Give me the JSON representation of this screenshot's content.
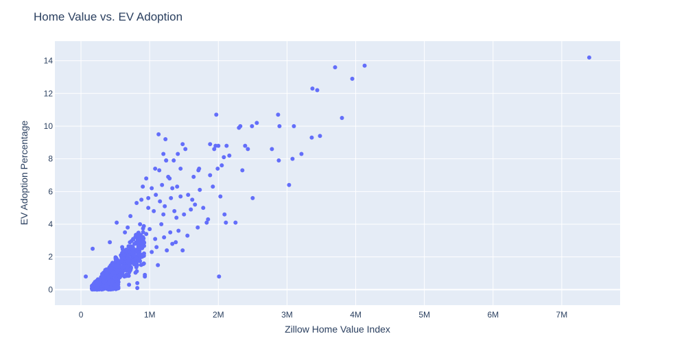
{
  "chart_data": {
    "type": "scatter",
    "title": "Home Value vs. EV Adoption",
    "xlabel": "Zillow Home Value Index",
    "ylabel": "EV Adoption Percentage",
    "xlim": [
      -380000,
      7850000
    ],
    "ylim": [
      -0.95,
      15.2
    ],
    "x_ticks": [
      0,
      1000000,
      2000000,
      3000000,
      4000000,
      5000000,
      6000000,
      7000000
    ],
    "x_tick_labels": [
      "0",
      "1M",
      "2M",
      "3M",
      "4M",
      "5M",
      "6M",
      "7M"
    ],
    "y_ticks": [
      0,
      2,
      4,
      6,
      8,
      10,
      12,
      14
    ],
    "y_tick_labels": [
      "0",
      "2",
      "4",
      "6",
      "8",
      "10",
      "12",
      "14"
    ],
    "grid": true,
    "colors": {
      "marker": "#636efa",
      "plot_bg": "#e5ecf6",
      "grid": "#ffffff",
      "text": "#2a3f5f"
    },
    "series": [
      {
        "points": [
          [
            7400000,
            14.2
          ],
          [
            4130000,
            13.7
          ],
          [
            3700000,
            13.6
          ],
          [
            3950000,
            12.9
          ],
          [
            3370000,
            12.3
          ],
          [
            3440000,
            12.2
          ],
          [
            2870000,
            10.7
          ],
          [
            1970000,
            10.7
          ],
          [
            3800000,
            10.5
          ],
          [
            2560000,
            10.2
          ],
          [
            2320000,
            10.0
          ],
          [
            2300000,
            9.9
          ],
          [
            2890000,
            10.0
          ],
          [
            2490000,
            10.0
          ],
          [
            3100000,
            10.0
          ],
          [
            1130000,
            9.5
          ],
          [
            3480000,
            9.4
          ],
          [
            3360000,
            9.3
          ],
          [
            1230000,
            9.2
          ],
          [
            1880000,
            8.9
          ],
          [
            1960000,
            8.8
          ],
          [
            2000000,
            8.8
          ],
          [
            2120000,
            8.8
          ],
          [
            2390000,
            8.8
          ],
          [
            1480000,
            8.9
          ],
          [
            1940000,
            8.6
          ],
          [
            2430000,
            8.6
          ],
          [
            2780000,
            8.6
          ],
          [
            1520000,
            8.6
          ],
          [
            3210000,
            8.3
          ],
          [
            1200000,
            8.3
          ],
          [
            1410000,
            8.3
          ],
          [
            2160000,
            8.2
          ],
          [
            3080000,
            8.0
          ],
          [
            2880000,
            7.9
          ],
          [
            2080000,
            8.1
          ],
          [
            1350000,
            7.9
          ],
          [
            1240000,
            7.9
          ],
          [
            2050000,
            7.6
          ],
          [
            1990000,
            7.4
          ],
          [
            1080000,
            7.4
          ],
          [
            1710000,
            7.3
          ],
          [
            2350000,
            7.3
          ],
          [
            1140000,
            7.3
          ],
          [
            1880000,
            7.0
          ],
          [
            1640000,
            6.9
          ],
          [
            1290000,
            6.8
          ],
          [
            3030000,
            6.4
          ],
          [
            2500000,
            5.6
          ],
          [
            2030000,
            5.7
          ],
          [
            2090000,
            4.6
          ],
          [
            2250000,
            4.1
          ],
          [
            2110000,
            4.1
          ],
          [
            1830000,
            4.1
          ],
          [
            1700000,
            3.8
          ],
          [
            1480000,
            2.4
          ],
          [
            2010000,
            0.8
          ],
          [
            170000,
            2.5
          ],
          [
            420000,
            2.9
          ],
          [
            70000,
            0.8
          ],
          [
            930000,
            0.9
          ],
          [
            930000,
            0.8
          ],
          [
            1120000,
            1.5
          ],
          [
            820000,
            0.4
          ],
          [
            820000,
            0.1
          ],
          [
            700000,
            0.3
          ],
          [
            1200000,
            4.6
          ],
          [
            1400000,
            6.3
          ],
          [
            1560000,
            5.8
          ],
          [
            900000,
            6.3
          ],
          [
            1030000,
            6.2
          ],
          [
            950000,
            3.4
          ],
          [
            1300000,
            3.5
          ],
          [
            1330000,
            2.8
          ],
          [
            1100000,
            2.6
          ],
          [
            1250000,
            2.4
          ],
          [
            780000,
            2.0
          ],
          [
            860000,
            4.0
          ],
          [
            520000,
            4.1
          ],
          [
            880000,
            5.5
          ],
          [
            980000,
            5.0
          ],
          [
            1220000,
            5.1
          ],
          [
            1390000,
            4.4
          ],
          [
            1600000,
            4.9
          ],
          [
            1060000,
            4.8
          ],
          [
            1150000,
            5.4
          ],
          [
            1330000,
            6.2
          ],
          [
            1450000,
            5.7
          ],
          [
            680000,
            3.8
          ],
          [
            760000,
            3.1
          ],
          [
            1000000,
            3.7
          ],
          [
            1170000,
            4.0
          ],
          [
            1420000,
            3.6
          ],
          [
            1500000,
            4.6
          ],
          [
            1550000,
            3.3
          ],
          [
            1620000,
            5.5
          ],
          [
            1730000,
            6.1
          ],
          [
            1780000,
            5.0
          ],
          [
            1850000,
            4.3
          ],
          [
            1920000,
            6.3
          ],
          [
            1660000,
            5.2
          ],
          [
            1270000,
            6.9
          ],
          [
            1310000,
            5.6
          ],
          [
            980000,
            5.6
          ],
          [
            1080000,
            3.1
          ],
          [
            1210000,
            3.2
          ],
          [
            1380000,
            2.9
          ],
          [
            1030000,
            2.3
          ],
          [
            860000,
            3.2
          ],
          [
            600000,
            2.6
          ],
          [
            640000,
            3.5
          ],
          [
            720000,
            4.5
          ],
          [
            810000,
            5.3
          ],
          [
            1450000,
            7.4
          ],
          [
            1720000,
            7.4
          ],
          [
            1240000,
            7.9
          ],
          [
            950000,
            6.8
          ],
          [
            1090000,
            5.8
          ],
          [
            1180000,
            6.4
          ],
          [
            1360000,
            4.8
          ]
        ]
      }
    ]
  }
}
